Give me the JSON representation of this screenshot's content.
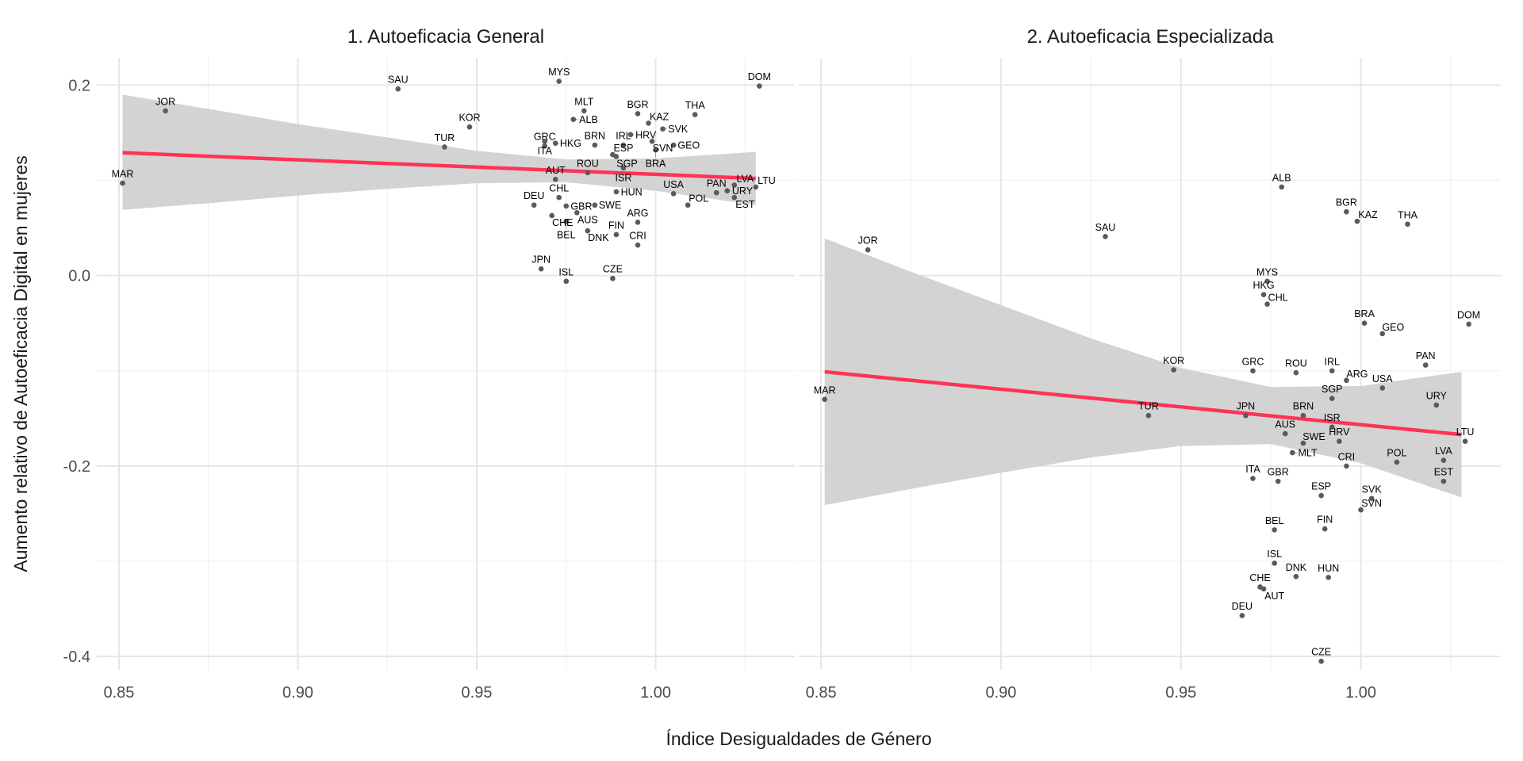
{
  "chart_data": [
    {
      "type": "scatter",
      "title": "1. Autoeficacia General",
      "xlabel": "Índice Desigualdades de Género",
      "ylabel": "Aumento relativo de Autoeficacia Digital en mujeres",
      "xlim": [
        0.8438,
        1.0389
      ],
      "ylim": [
        -0.414,
        0.2286
      ],
      "xticks": [
        0.85,
        0.9,
        0.95,
        1.0
      ],
      "xtick_labels": [
        "0.85",
        "0.90",
        "0.95",
        "1.00"
      ],
      "yticks": [
        0.2,
        0.0,
        -0.2,
        -0.4
      ],
      "ytick_labels": [
        "0.2",
        "0.0",
        "-0.2",
        "-0.4"
      ],
      "grid": true,
      "point_color": "#5a5a5a",
      "line_color": "#ff3355",
      "ribbon_color": "#d3d3d3",
      "points": [
        {
          "label": "MAR",
          "x": 0.851,
          "y": 0.097
        },
        {
          "label": "JOR",
          "x": 0.863,
          "y": 0.173
        },
        {
          "label": "SAU",
          "x": 0.928,
          "y": 0.196
        },
        {
          "label": "KOR",
          "x": 0.948,
          "y": 0.156
        },
        {
          "label": "TUR",
          "x": 0.941,
          "y": 0.135
        },
        {
          "label": "MYS",
          "x": 0.973,
          "y": 0.204
        },
        {
          "label": "MLT",
          "x": 0.98,
          "y": 0.173
        },
        {
          "label": "ALB",
          "x": 0.977,
          "y": 0.164
        },
        {
          "label": "GRC",
          "x": 0.969,
          "y": 0.136
        },
        {
          "label": "ITA",
          "x": 0.969,
          "y": 0.141
        },
        {
          "label": "HKG",
          "x": 0.972,
          "y": 0.139
        },
        {
          "label": "BRN",
          "x": 0.983,
          "y": 0.137
        },
        {
          "label": "IRL",
          "x": 0.991,
          "y": 0.137
        },
        {
          "label": "HRV",
          "x": 0.993,
          "y": 0.148
        },
        {
          "label": "ESP",
          "x": 0.988,
          "y": 0.127
        },
        {
          "label": "SGP",
          "x": 0.989,
          "y": 0.125
        },
        {
          "label": "ISR",
          "x": 0.991,
          "y": 0.113
        },
        {
          "label": "ROU",
          "x": 0.981,
          "y": 0.108
        },
        {
          "label": "AUT",
          "x": 0.972,
          "y": 0.101
        },
        {
          "label": "HUN",
          "x": 0.989,
          "y": 0.088
        },
        {
          "label": "CHL",
          "x": 0.973,
          "y": 0.082
        },
        {
          "label": "DEU",
          "x": 0.966,
          "y": 0.074
        },
        {
          "label": "GBR",
          "x": 0.975,
          "y": 0.073
        },
        {
          "label": "AUS",
          "x": 0.978,
          "y": 0.066
        },
        {
          "label": "SWE",
          "x": 0.983,
          "y": 0.074
        },
        {
          "label": "CHE",
          "x": 0.971,
          "y": 0.063
        },
        {
          "label": "BEL",
          "x": 0.975,
          "y": 0.057
        },
        {
          "label": "DNK",
          "x": 0.981,
          "y": 0.047
        },
        {
          "label": "FIN",
          "x": 0.989,
          "y": 0.043
        },
        {
          "label": "ARG",
          "x": 0.995,
          "y": 0.056
        },
        {
          "label": "CRI",
          "x": 0.995,
          "y": 0.032
        },
        {
          "label": "JPN",
          "x": 0.968,
          "y": 0.007
        },
        {
          "label": "ISL",
          "x": 0.975,
          "y": -0.006
        },
        {
          "label": "CZE",
          "x": 0.988,
          "y": -0.003
        },
        {
          "label": "BGR",
          "x": 0.995,
          "y": 0.17
        },
        {
          "label": "KAZ",
          "x": 0.998,
          "y": 0.16
        },
        {
          "label": "SVK",
          "x": 1.002,
          "y": 0.154
        },
        {
          "label": "THA",
          "x": 1.011,
          "y": 0.169
        },
        {
          "label": "SVN",
          "x": 0.999,
          "y": 0.141
        },
        {
          "label": "GEO",
          "x": 1.005,
          "y": 0.137
        },
        {
          "label": "BRA",
          "x": 1.0,
          "y": 0.132
        },
        {
          "label": "USA",
          "x": 1.005,
          "y": 0.086
        },
        {
          "label": "POL",
          "x": 1.009,
          "y": 0.074
        },
        {
          "label": "PAN",
          "x": 1.017,
          "y": 0.087
        },
        {
          "label": "URY",
          "x": 1.02,
          "y": 0.089
        },
        {
          "label": "LVA",
          "x": 1.022,
          "y": 0.095
        },
        {
          "label": "EST",
          "x": 1.022,
          "y": 0.082
        },
        {
          "label": "LTU",
          "x": 1.028,
          "y": 0.093
        },
        {
          "label": "DOM",
          "x": 1.029,
          "y": 0.199
        }
      ],
      "fit": {
        "x": [
          0.851,
          0.875,
          0.9,
          0.925,
          0.95,
          0.975,
          1.0,
          1.028
        ],
        "y": [
          0.129,
          0.1253,
          0.1215,
          0.1177,
          0.1139,
          0.1101,
          0.1063,
          0.102
        ],
        "lower": [
          0.069,
          0.076,
          0.084,
          0.091,
          0.097,
          0.098,
          0.089,
          0.074
        ],
        "upper": [
          0.19,
          0.175,
          0.159,
          0.145,
          0.131,
          0.122,
          0.123,
          0.13
        ]
      }
    },
    {
      "type": "scatter",
      "title": "2. Autoeficacia Especializada",
      "xlim": [
        0.8438,
        1.0389
      ],
      "ylim": [
        -0.414,
        0.2286
      ],
      "xticks": [
        0.85,
        0.9,
        0.95,
        1.0
      ],
      "xtick_labels": [
        "0.85",
        "0.90",
        "0.95",
        "1.00"
      ],
      "grid": true,
      "point_color": "#5a5a5a",
      "line_color": "#ff3355",
      "ribbon_color": "#d3d3d3",
      "points": [
        {
          "label": "JOR",
          "x": 0.863,
          "y": 0.027
        },
        {
          "label": "SAU",
          "x": 0.929,
          "y": 0.041
        },
        {
          "label": "MAR",
          "x": 0.851,
          "y": -0.13
        },
        {
          "label": "KOR",
          "x": 0.948,
          "y": -0.099
        },
        {
          "label": "TUR",
          "x": 0.941,
          "y": -0.147
        },
        {
          "label": "ALB",
          "x": 0.978,
          "y": 0.093
        },
        {
          "label": "BGR",
          "x": 0.996,
          "y": 0.067
        },
        {
          "label": "KAZ",
          "x": 0.999,
          "y": 0.057
        },
        {
          "label": "THA",
          "x": 1.013,
          "y": 0.054
        },
        {
          "label": "MYS",
          "x": 0.974,
          "y": -0.006
        },
        {
          "label": "HKG",
          "x": 0.973,
          "y": -0.02
        },
        {
          "label": "CHL",
          "x": 0.974,
          "y": -0.03
        },
        {
          "label": "BRA",
          "x": 1.001,
          "y": -0.05
        },
        {
          "label": "GEO",
          "x": 1.006,
          "y": -0.061
        },
        {
          "label": "DOM",
          "x": 1.03,
          "y": -0.051
        },
        {
          "label": "PAN",
          "x": 1.018,
          "y": -0.094
        },
        {
          "label": "GRC",
          "x": 0.97,
          "y": -0.1
        },
        {
          "label": "ROU",
          "x": 0.982,
          "y": -0.102
        },
        {
          "label": "IRL",
          "x": 0.992,
          "y": -0.1
        },
        {
          "label": "ARG",
          "x": 0.996,
          "y": -0.11
        },
        {
          "label": "USA",
          "x": 1.006,
          "y": -0.118
        },
        {
          "label": "SGP",
          "x": 0.992,
          "y": -0.129
        },
        {
          "label": "URY",
          "x": 1.021,
          "y": -0.136
        },
        {
          "label": "JPN",
          "x": 0.968,
          "y": -0.147
        },
        {
          "label": "BRN",
          "x": 0.984,
          "y": -0.147
        },
        {
          "label": "ISR",
          "x": 0.992,
          "y": -0.159
        },
        {
          "label": "AUS",
          "x": 0.979,
          "y": -0.166
        },
        {
          "label": "HRV",
          "x": 0.994,
          "y": -0.174
        },
        {
          "label": "SWE",
          "x": 0.984,
          "y": -0.176
        },
        {
          "label": "MLT",
          "x": 0.981,
          "y": -0.186
        },
        {
          "label": "LTU",
          "x": 1.029,
          "y": -0.174
        },
        {
          "label": "CRI",
          "x": 0.996,
          "y": -0.2
        },
        {
          "label": "POL",
          "x": 1.01,
          "y": -0.196
        },
        {
          "label": "LVA",
          "x": 1.023,
          "y": -0.194
        },
        {
          "label": "EST",
          "x": 1.023,
          "y": -0.216
        },
        {
          "label": "ITA",
          "x": 0.97,
          "y": -0.213
        },
        {
          "label": "GBR",
          "x": 0.977,
          "y": -0.216
        },
        {
          "label": "ESP",
          "x": 0.989,
          "y": -0.231
        },
        {
          "label": "SVK",
          "x": 1.003,
          "y": -0.234
        },
        {
          "label": "SVN",
          "x": 1.0,
          "y": -0.246
        },
        {
          "label": "BEL",
          "x": 0.976,
          "y": -0.267
        },
        {
          "label": "FIN",
          "x": 0.99,
          "y": -0.266
        },
        {
          "label": "ISL",
          "x": 0.976,
          "y": -0.302
        },
        {
          "label": "DNK",
          "x": 0.982,
          "y": -0.316
        },
        {
          "label": "HUN",
          "x": 0.991,
          "y": -0.317
        },
        {
          "label": "CHE",
          "x": 0.972,
          "y": -0.327
        },
        {
          "label": "AUT",
          "x": 0.973,
          "y": -0.329
        },
        {
          "label": "DEU",
          "x": 0.967,
          "y": -0.357
        },
        {
          "label": "CZE",
          "x": 0.989,
          "y": -0.405
        }
      ],
      "fit": {
        "x": [
          0.851,
          0.875,
          0.9,
          0.925,
          0.95,
          0.975,
          1.0,
          1.028
        ],
        "y": [
          -0.101,
          -0.11,
          -0.1193,
          -0.1286,
          -0.1379,
          -0.1473,
          -0.1566,
          -0.167
        ],
        "lower": [
          -0.241,
          -0.224,
          -0.207,
          -0.191,
          -0.179,
          -0.177,
          -0.197,
          -0.233
        ],
        "upper": [
          0.039,
          0.004,
          -0.031,
          -0.066,
          -0.097,
          -0.117,
          -0.116,
          -0.101
        ]
      }
    }
  ]
}
